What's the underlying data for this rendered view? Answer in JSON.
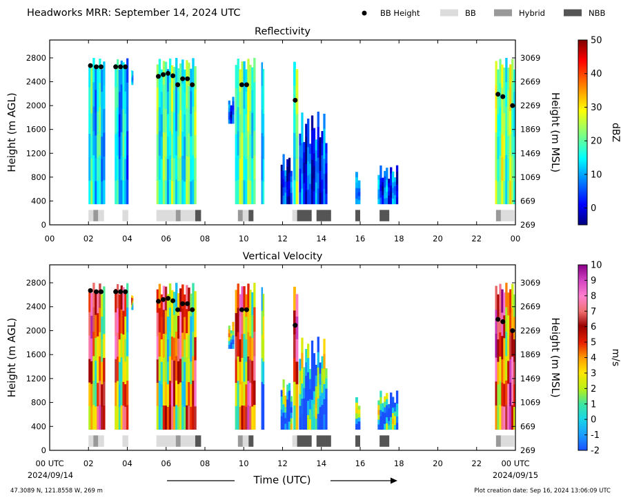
{
  "header": {
    "title": "Headworks MRR:  September 14, 2024 UTC",
    "legend": [
      {
        "label": "BB Height",
        "kind": "dot",
        "color": "#000000"
      },
      {
        "label": "BB",
        "kind": "rect",
        "color": "#dcdcdc"
      },
      {
        "label": "Hybrid",
        "kind": "rect",
        "color": "#999999"
      },
      {
        "label": "NBB",
        "kind": "rect",
        "color": "#555555"
      }
    ]
  },
  "footer": {
    "location": "47.3089 N, 121.8558 W, 269 m",
    "created": "Plot creation date: Sep 16, 2024 13:06:09 UTC",
    "xlabel": "Time (UTC)",
    "start_date": "2024/09/14",
    "end_date": "2024/09/15",
    "start_tick": "00 UTC",
    "end_tick": "00 UTC"
  },
  "chart_data": [
    {
      "type": "heatmap",
      "title": "Reflectivity",
      "ylabel": "Height (m AGL)",
      "ylabel_right": "Height (m MSL)",
      "colorbar_label": "dBZ",
      "colorbar_ticks": [
        "50",
        "40",
        "30",
        "20",
        "10",
        "0"
      ],
      "colorbar_range": [
        -5,
        50
      ],
      "colorscale": "jet",
      "xlim": [
        0,
        24
      ],
      "ylim": [
        0,
        3100
      ],
      "x_ticks": [
        "00",
        "02",
        "04",
        "06",
        "08",
        "10",
        "12",
        "14",
        "16",
        "18",
        "20",
        "22",
        "00"
      ],
      "y_ticks": [
        "0",
        "400",
        "800",
        "1200",
        "1600",
        "2000",
        "2400",
        "2800"
      ],
      "y_ticks_right": [
        "269",
        "669",
        "1069",
        "1469",
        "1869",
        "2269",
        "2669",
        "3069"
      ]
    },
    {
      "type": "heatmap",
      "title": "Vertical Velocity",
      "ylabel": "Height (m AGL)",
      "ylabel_right": "Height (m MSL)",
      "colorbar_label": "m/s",
      "colorbar_ticks": [
        "10",
        "9",
        "8",
        "7",
        "6",
        "5",
        "4",
        "3",
        "2",
        "1",
        "0",
        "-1",
        "-2"
      ],
      "colorbar_range": [
        -2,
        10
      ],
      "colorscale": "velocity",
      "xlim": [
        0,
        24
      ],
      "ylim": [
        0,
        3100
      ],
      "x_ticks": [
        "00 UTC",
        "02",
        "04",
        "06",
        "08",
        "10",
        "12",
        "14",
        "16",
        "18",
        "20",
        "22",
        "00 UTC"
      ],
      "y_ticks": [
        "0",
        "400",
        "800",
        "1200",
        "1600",
        "2000",
        "2400",
        "2800"
      ],
      "y_ticks_right": [
        "269",
        "669",
        "1069",
        "1469",
        "1869",
        "2269",
        "2669",
        "3069"
      ]
    }
  ],
  "shared_data": {
    "bb_height_points": [
      {
        "x": 2.1,
        "y": 2670
      },
      {
        "x": 2.4,
        "y": 2650
      },
      {
        "x": 2.65,
        "y": 2650
      },
      {
        "x": 3.4,
        "y": 2650
      },
      {
        "x": 3.65,
        "y": 2650
      },
      {
        "x": 3.9,
        "y": 2650
      },
      {
        "x": 5.6,
        "y": 2490
      },
      {
        "x": 5.85,
        "y": 2520
      },
      {
        "x": 6.1,
        "y": 2540
      },
      {
        "x": 6.35,
        "y": 2500
      },
      {
        "x": 6.6,
        "y": 2350
      },
      {
        "x": 6.85,
        "y": 2450
      },
      {
        "x": 7.1,
        "y": 2450
      },
      {
        "x": 7.35,
        "y": 2350
      },
      {
        "x": 9.9,
        "y": 2350
      },
      {
        "x": 10.15,
        "y": 2350
      },
      {
        "x": 12.65,
        "y": 2090
      },
      {
        "x": 23.1,
        "y": 2190
      },
      {
        "x": 23.35,
        "y": 2150
      },
      {
        "x": 23.85,
        "y": 2000
      }
    ],
    "bb_type_segments": [
      {
        "start": 2.0,
        "end": 2.25,
        "kind": "BB"
      },
      {
        "start": 2.25,
        "end": 2.5,
        "kind": "Hybrid"
      },
      {
        "start": 2.5,
        "end": 2.8,
        "kind": "BB"
      },
      {
        "start": 3.75,
        "end": 4.05,
        "kind": "BB"
      },
      {
        "start": 5.5,
        "end": 6.5,
        "kind": "BB"
      },
      {
        "start": 6.5,
        "end": 6.75,
        "kind": "Hybrid"
      },
      {
        "start": 6.75,
        "end": 7.5,
        "kind": "BB"
      },
      {
        "start": 7.5,
        "end": 7.8,
        "kind": "NBB"
      },
      {
        "start": 9.7,
        "end": 9.95,
        "kind": "Hybrid"
      },
      {
        "start": 9.95,
        "end": 10.25,
        "kind": "BB"
      },
      {
        "start": 10.25,
        "end": 10.5,
        "kind": "NBB"
      },
      {
        "start": 12.5,
        "end": 12.75,
        "kind": "BB"
      },
      {
        "start": 12.75,
        "end": 13.5,
        "kind": "NBB"
      },
      {
        "start": 13.75,
        "end": 14.5,
        "kind": "NBB"
      },
      {
        "start": 15.75,
        "end": 16.0,
        "kind": "NBB"
      },
      {
        "start": 17.0,
        "end": 17.5,
        "kind": "NBB"
      },
      {
        "start": 23.0,
        "end": 23.25,
        "kind": "Hybrid"
      },
      {
        "start": 23.25,
        "end": 23.95,
        "kind": "BB"
      }
    ],
    "echo_columns": [
      {
        "start": 2.0,
        "end": 2.85,
        "top": 2800,
        "bottom": 350,
        "dbz": 14,
        "vv": 6.2
      },
      {
        "start": 3.35,
        "end": 4.05,
        "top": 2800,
        "bottom": 350,
        "dbz": 12,
        "vv": 5.5
      },
      {
        "start": 4.2,
        "end": 4.3,
        "top": 2600,
        "bottom": 2350,
        "dbz": 8,
        "vv": 3.0
      },
      {
        "start": 5.5,
        "end": 7.55,
        "top": 2800,
        "bottom": 350,
        "dbz": 18,
        "vv": 5.0
      },
      {
        "start": 9.2,
        "end": 9.5,
        "top": 2150,
        "bottom": 1700,
        "dbz": 6,
        "vv": 2.5
      },
      {
        "start": 9.55,
        "end": 10.6,
        "top": 2800,
        "bottom": 350,
        "dbz": 20,
        "vv": 6.0
      },
      {
        "start": 10.9,
        "end": 11.05,
        "top": 2800,
        "bottom": 350,
        "dbz": 16,
        "vv": 2.2
      },
      {
        "start": 11.9,
        "end": 12.5,
        "top": 1200,
        "bottom": 350,
        "dbz": 2,
        "vv": 0.8
      },
      {
        "start": 12.55,
        "end": 12.8,
        "top": 2800,
        "bottom": 350,
        "dbz": 18,
        "vv": 6.0
      },
      {
        "start": 12.85,
        "end": 14.3,
        "top": 1900,
        "bottom": 350,
        "dbz": 3,
        "vv": 0.6
      },
      {
        "start": 15.75,
        "end": 16.0,
        "top": 950,
        "bottom": 350,
        "dbz": 4,
        "vv": 0.5
      },
      {
        "start": 16.9,
        "end": 17.95,
        "top": 1000,
        "bottom": 350,
        "dbz": 5,
        "vv": 0.7
      },
      {
        "start": 22.95,
        "end": 24.0,
        "top": 2800,
        "bottom": 350,
        "dbz": 22,
        "vv": 7.0
      }
    ]
  }
}
